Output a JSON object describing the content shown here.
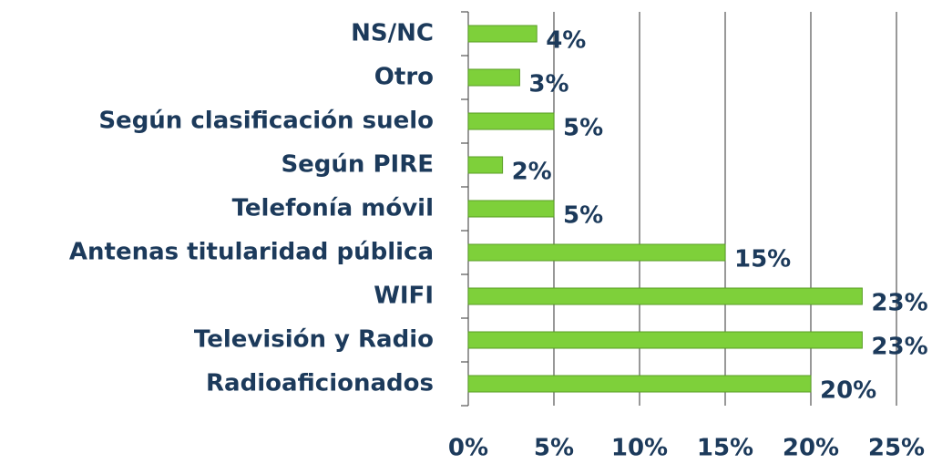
{
  "chart_data": {
    "type": "bar",
    "orientation": "horizontal",
    "categories": [
      "NS/NC",
      "Otro",
      "Según clasificación suelo",
      "Según PIRE",
      "Telefonía móvil",
      "Antenas titularidad pública",
      "WIFI",
      "Televisión y Radio",
      "Radioaficionados"
    ],
    "values": [
      4,
      3,
      5,
      2,
      5,
      15,
      23,
      23,
      20
    ],
    "value_labels": [
      "4%",
      "3%",
      "5%",
      "2%",
      "5%",
      "15%",
      "23%",
      "23%",
      "20%"
    ],
    "color": "#7ed03a",
    "xlim": [
      0,
      25
    ],
    "xticks": [
      {
        "value": 0,
        "label": "0%"
      },
      {
        "value": 5,
        "label": "5%"
      },
      {
        "value": 10,
        "label": "10%"
      },
      {
        "value": 15,
        "label": "15%"
      },
      {
        "value": 20,
        "label": "20%"
      },
      {
        "value": 25,
        "label": "25%"
      }
    ],
    "grid": true
  }
}
